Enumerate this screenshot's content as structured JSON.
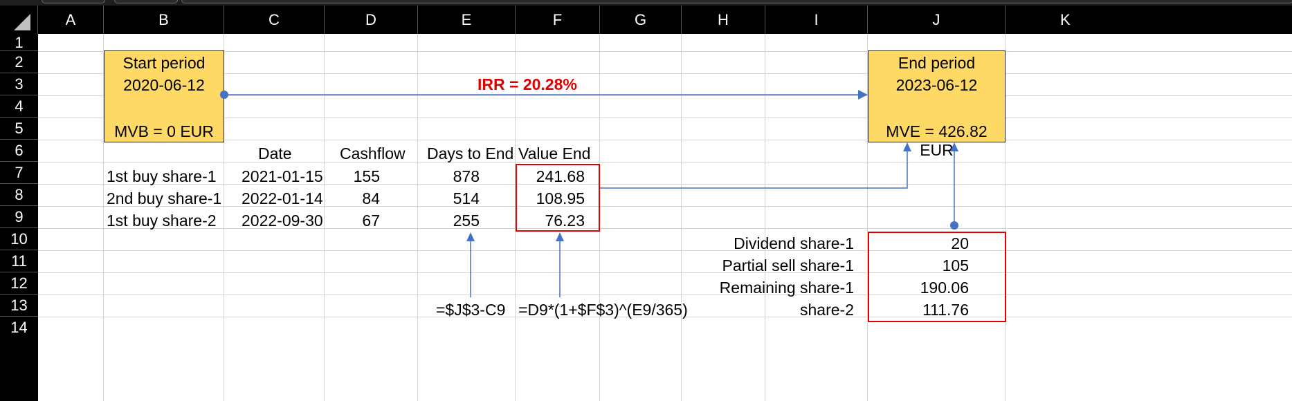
{
  "columns": [
    "A",
    "B",
    "C",
    "D",
    "E",
    "F",
    "G",
    "H",
    "I",
    "J",
    "K"
  ],
  "rows": [
    "1",
    "2",
    "3",
    "4",
    "5",
    "6",
    "7",
    "8",
    "9",
    "10",
    "11",
    "12",
    "13",
    "14"
  ],
  "start_box": {
    "title": "Start period",
    "date": "2020-06-12",
    "value": "MVB = 0 EUR"
  },
  "end_box": {
    "title": "End period",
    "date": "2023-06-12",
    "value": "MVE = 426.82 EUR"
  },
  "irr_label": "IRR = 20.28%",
  "table": {
    "headers": {
      "date": "Date",
      "cashflow": "Cashflow",
      "days": "Days to End",
      "value": "Value End"
    },
    "rows": [
      {
        "label": "1st buy share-1",
        "date": "2021-01-15",
        "cashflow": "155",
        "days": "878",
        "value": "241.68"
      },
      {
        "label": "2nd buy share-1",
        "date": "2022-01-14",
        "cashflow": "84",
        "days": "514",
        "value": "108.95"
      },
      {
        "label": "1st buy share-2",
        "date": "2022-09-30",
        "cashflow": "67",
        "days": "255",
        "value": "76.23"
      }
    ]
  },
  "summary": [
    {
      "label": "Dividend share-1",
      "value": "20"
    },
    {
      "label": "Partial sell share-1",
      "value": "105"
    },
    {
      "label": "Remaining share-1",
      "value": "190.06"
    },
    {
      "label": "share-2",
      "value": "111.76"
    }
  ],
  "formulas": {
    "days": "=$J$3-C9",
    "value": "=D9*(1+$F$3)^(E9/365)"
  },
  "colors": {
    "box_fill": "#ffd966",
    "highlight": "#e00000",
    "arrow": "#4472c4",
    "header_bg": "#000000"
  }
}
